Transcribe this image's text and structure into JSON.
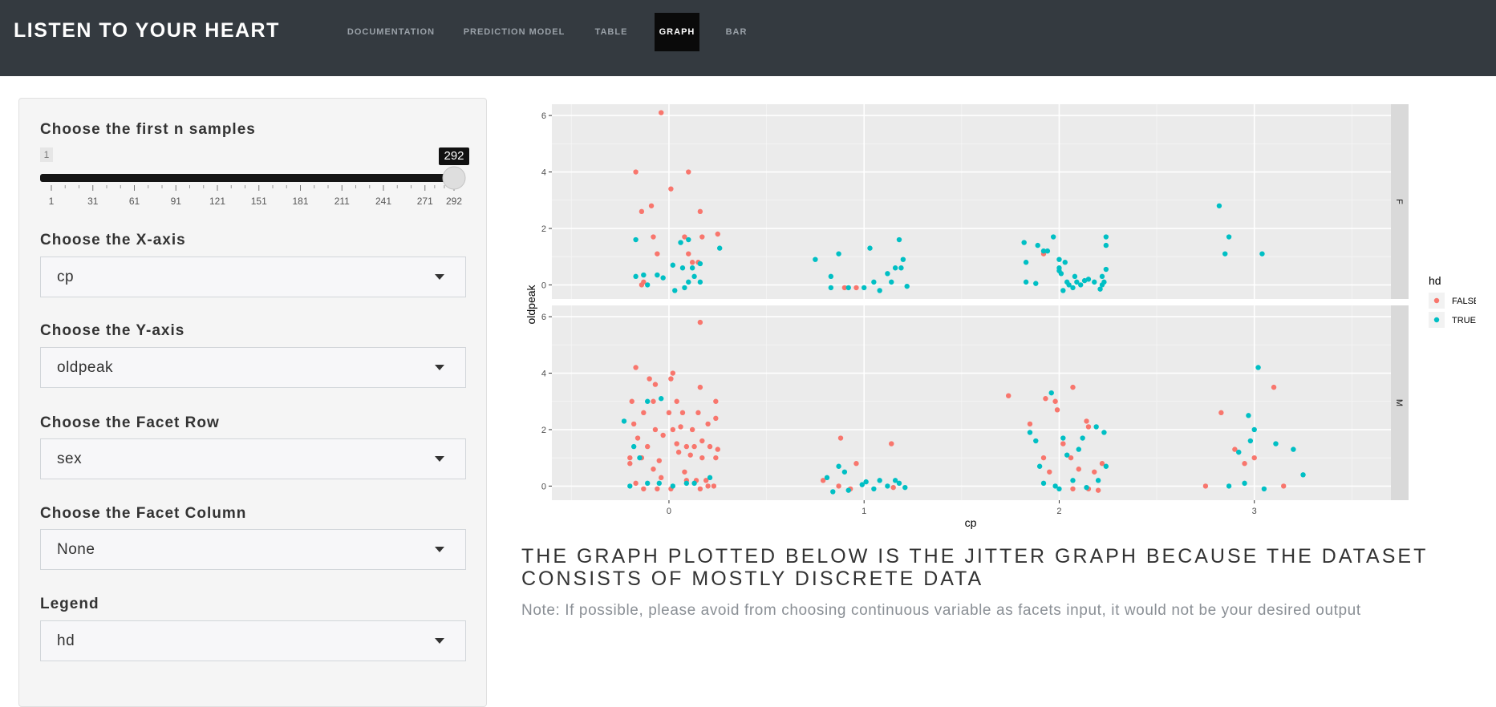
{
  "header": {
    "brand": "LISTEN TO YOUR HEART",
    "tabs": [
      {
        "label": "DOCUMENTATION"
      },
      {
        "label": "PREDICTION MODEL"
      },
      {
        "label": "TABLE"
      },
      {
        "label": "GRAPH"
      },
      {
        "label": "BAR"
      }
    ],
    "active_tab": "GRAPH"
  },
  "sidebar": {
    "slider": {
      "label": "Choose the first n samples",
      "min": 1,
      "max": 292,
      "value": 292,
      "min_label": "1",
      "value_label": "292",
      "ticks": [
        "1",
        "31",
        "61",
        "91",
        "121",
        "151",
        "181",
        "211",
        "241",
        "271",
        "292"
      ]
    },
    "x_axis": {
      "label": "Choose the X-axis",
      "value": "cp"
    },
    "y_axis": {
      "label": "Choose the Y-axis",
      "value": "oldpeak"
    },
    "facet_row": {
      "label": "Choose the Facet Row",
      "value": "sex"
    },
    "facet_col": {
      "label": "Choose the Facet Column",
      "value": "None"
    },
    "legend": {
      "label": "Legend",
      "value": "hd"
    }
  },
  "main": {
    "title": "THE GRAPH PLOTTED BELOW IS THE JITTER GRAPH BECAUSE THE DATASET CONSISTS OF MOSTLY DISCRETE DATA",
    "note": "Note: If possible, please avoid from choosing continuous variable as facets input, it would not be your desired output"
  },
  "colors": {
    "false": "#f8766d",
    "true": "#00bfc4",
    "panel_bg": "#ebebeb",
    "strip_bg": "#d9d9d9",
    "navbar_bg": "#343a40"
  },
  "chart_data": {
    "type": "scatter",
    "jitter": true,
    "xlabel": "cp",
    "ylabel": "oldpeak",
    "x_ticks": [
      "0",
      "1",
      "2",
      "3"
    ],
    "y_ticks": [
      "0",
      "2",
      "4",
      "6"
    ],
    "xlim": [
      -0.6,
      3.7
    ],
    "ylim": [
      -0.5,
      6.4
    ],
    "grid": true,
    "legend_title": "hd",
    "legend_entries": [
      "FALSE",
      "TRUE"
    ],
    "legend_position": "right",
    "facets": [
      {
        "label": "F",
        "series": [
          {
            "name": "FALSE",
            "points": [
              [
                -0.04,
                6.1
              ],
              [
                -0.17,
                4.0
              ],
              [
                0.1,
                4.0
              ],
              [
                0.01,
                3.4
              ],
              [
                -0.09,
                2.8
              ],
              [
                -0.14,
                2.6
              ],
              [
                0.16,
                2.6
              ],
              [
                -0.08,
                1.7
              ],
              [
                0.08,
                1.7
              ],
              [
                0.17,
                1.7
              ],
              [
                0.25,
                1.8
              ],
              [
                -0.06,
                1.1
              ],
              [
                0.1,
                1.1
              ],
              [
                0.12,
                0.8
              ],
              [
                0.15,
                0.8
              ],
              [
                -0.13,
                0.1
              ],
              [
                -0.14,
                0.0
              ],
              [
                0.9,
                -0.1
              ],
              [
                0.96,
                -0.1
              ],
              [
                1.92,
                1.1
              ]
            ]
          },
          {
            "name": "TRUE",
            "points": [
              [
                -0.17,
                1.6
              ],
              [
                -0.17,
                0.3
              ],
              [
                -0.13,
                0.35
              ],
              [
                -0.06,
                0.35
              ],
              [
                -0.03,
                0.25
              ],
              [
                -0.11,
                0.0
              ],
              [
                0.02,
                0.7
              ],
              [
                0.06,
                1.5
              ],
              [
                0.1,
                1.6
              ],
              [
                0.07,
                0.6
              ],
              [
                0.12,
                0.6
              ],
              [
                0.16,
                0.75
              ],
              [
                0.03,
                -0.2
              ],
              [
                0.08,
                -0.1
              ],
              [
                0.1,
                0.1
              ],
              [
                0.16,
                0.1
              ],
              [
                0.26,
                1.3
              ],
              [
                0.13,
                0.3
              ],
              [
                0.75,
                0.9
              ],
              [
                0.83,
                0.3
              ],
              [
                0.83,
                -0.1
              ],
              [
                0.87,
                1.1
              ],
              [
                0.92,
                -0.1
              ],
              [
                1.0,
                -0.1
              ],
              [
                1.03,
                1.3
              ],
              [
                1.05,
                0.1
              ],
              [
                1.08,
                -0.2
              ],
              [
                1.12,
                0.4
              ],
              [
                1.14,
                0.1
              ],
              [
                1.16,
                0.6
              ],
              [
                1.18,
                1.6
              ],
              [
                1.19,
                0.6
              ],
              [
                1.2,
                0.9
              ],
              [
                1.22,
                -0.05
              ],
              [
                1.82,
                1.5
              ],
              [
                1.83,
                0.8
              ],
              [
                1.83,
                0.1
              ],
              [
                1.88,
                0.05
              ],
              [
                1.89,
                1.4
              ],
              [
                1.92,
                1.2
              ],
              [
                1.94,
                1.2
              ],
              [
                1.97,
                1.7
              ],
              [
                2.0,
                0.9
              ],
              [
                2.0,
                0.6
              ],
              [
                2.0,
                0.5
              ],
              [
                2.01,
                0.4
              ],
              [
                2.02,
                -0.2
              ],
              [
                2.03,
                0.8
              ],
              [
                2.04,
                0.1
              ],
              [
                2.05,
                0.0
              ],
              [
                2.07,
                -0.1
              ],
              [
                2.08,
                0.3
              ],
              [
                2.09,
                0.1
              ],
              [
                2.11,
                0.0
              ],
              [
                2.13,
                0.15
              ],
              [
                2.15,
                0.2
              ],
              [
                2.18,
                0.1
              ],
              [
                2.21,
                -0.15
              ],
              [
                2.22,
                0.0
              ],
              [
                2.22,
                0.3
              ],
              [
                2.23,
                0.1
              ],
              [
                2.24,
                1.7
              ],
              [
                2.24,
                1.4
              ],
              [
                2.24,
                0.55
              ],
              [
                2.82,
                2.8
              ],
              [
                2.85,
                1.1
              ],
              [
                2.87,
                1.7
              ],
              [
                3.04,
                1.1
              ]
            ]
          }
        ]
      },
      {
        "label": "M",
        "series": [
          {
            "name": "FALSE",
            "points": [
              [
                0.16,
                5.8
              ],
              [
                -0.17,
                4.2
              ],
              [
                -0.1,
                3.8
              ],
              [
                -0.07,
                3.6
              ],
              [
                0.02,
                4.0
              ],
              [
                0.01,
                3.8
              ],
              [
                0.16,
                3.5
              ],
              [
                -0.19,
                3.0
              ],
              [
                -0.08,
                3.0
              ],
              [
                0.04,
                3.0
              ],
              [
                -0.13,
                2.6
              ],
              [
                0.0,
                2.6
              ],
              [
                0.07,
                2.6
              ],
              [
                0.15,
                2.6
              ],
              [
                0.24,
                3.0
              ],
              [
                -0.18,
                2.2
              ],
              [
                -0.07,
                2.0
              ],
              [
                0.02,
                2.0
              ],
              [
                0.06,
                2.1
              ],
              [
                0.12,
                2.0
              ],
              [
                0.2,
                2.2
              ],
              [
                0.24,
                2.4
              ],
              [
                -0.16,
                1.7
              ],
              [
                -0.11,
                1.4
              ],
              [
                -0.03,
                1.8
              ],
              [
                0.04,
                1.5
              ],
              [
                0.09,
                1.4
              ],
              [
                0.13,
                1.4
              ],
              [
                0.17,
                1.6
              ],
              [
                0.21,
                1.4
              ],
              [
                0.25,
                1.3
              ],
              [
                -0.2,
                1.0
              ],
              [
                -0.14,
                1.0
              ],
              [
                -0.05,
                0.9
              ],
              [
                0.05,
                1.2
              ],
              [
                0.11,
                1.1
              ],
              [
                0.17,
                1.0
              ],
              [
                0.24,
                1.0
              ],
              [
                -0.2,
                0.8
              ],
              [
                -0.08,
                0.6
              ],
              [
                -0.04,
                0.3
              ],
              [
                0.08,
                0.5
              ],
              [
                0.14,
                0.2
              ],
              [
                0.19,
                0.2
              ],
              [
                0.23,
                0.0
              ],
              [
                -0.17,
                0.1
              ],
              [
                -0.13,
                -0.1
              ],
              [
                -0.06,
                -0.1
              ],
              [
                0.01,
                -0.1
              ],
              [
                0.09,
                0.2
              ],
              [
                0.16,
                -0.1
              ],
              [
                0.2,
                0.0
              ],
              [
                0.88,
                1.7
              ],
              [
                1.14,
                1.5
              ],
              [
                0.79,
                0.2
              ],
              [
                0.87,
                0.0
              ],
              [
                0.93,
                -0.1
              ],
              [
                0.96,
                0.8
              ],
              [
                1.15,
                -0.05
              ],
              [
                1.74,
                3.2
              ],
              [
                1.85,
                2.2
              ],
              [
                1.93,
                3.1
              ],
              [
                1.98,
                3.0
              ],
              [
                1.99,
                2.7
              ],
              [
                2.07,
                3.5
              ],
              [
                2.14,
                2.3
              ],
              [
                2.15,
                2.1
              ],
              [
                2.02,
                1.5
              ],
              [
                1.92,
                1.0
              ],
              [
                1.95,
                0.5
              ],
              [
                2.06,
                1.0
              ],
              [
                2.1,
                0.6
              ],
              [
                2.18,
                0.5
              ],
              [
                2.22,
                0.8
              ],
              [
                2.07,
                -0.1
              ],
              [
                2.15,
                -0.1
              ],
              [
                2.2,
                -0.15
              ],
              [
                2.75,
                0.0
              ],
              [
                2.83,
                2.6
              ],
              [
                2.9,
                1.3
              ],
              [
                2.95,
                0.8
              ],
              [
                3.0,
                1.0
              ],
              [
                3.1,
                3.5
              ],
              [
                3.15,
                0.0
              ]
            ]
          },
          {
            "name": "TRUE",
            "points": [
              [
                -0.23,
                2.3
              ],
              [
                -0.18,
                1.4
              ],
              [
                -0.15,
                1.0
              ],
              [
                -0.11,
                3.0
              ],
              [
                -0.11,
                0.1
              ],
              [
                -0.05,
                0.1
              ],
              [
                -0.04,
                3.1
              ],
              [
                -0.2,
                0.0
              ],
              [
                0.02,
                0.0
              ],
              [
                0.09,
                0.1
              ],
              [
                0.13,
                0.1
              ],
              [
                0.21,
                0.3
              ],
              [
                0.81,
                0.3
              ],
              [
                0.84,
                -0.2
              ],
              [
                0.87,
                0.7
              ],
              [
                0.9,
                0.5
              ],
              [
                0.92,
                -0.15
              ],
              [
                0.99,
                0.05
              ],
              [
                1.01,
                0.15
              ],
              [
                1.05,
                -0.1
              ],
              [
                1.08,
                0.2
              ],
              [
                1.12,
                0.0
              ],
              [
                1.16,
                0.2
              ],
              [
                1.18,
                0.1
              ],
              [
                1.21,
                -0.05
              ],
              [
                1.85,
                1.9
              ],
              [
                1.88,
                1.6
              ],
              [
                1.9,
                0.7
              ],
              [
                1.92,
                0.1
              ],
              [
                1.96,
                3.3
              ],
              [
                1.98,
                0.0
              ],
              [
                2.0,
                -0.1
              ],
              [
                2.02,
                1.7
              ],
              [
                2.04,
                1.1
              ],
              [
                2.07,
                0.2
              ],
              [
                2.1,
                1.3
              ],
              [
                2.12,
                1.7
              ],
              [
                2.14,
                -0.05
              ],
              [
                2.19,
                2.1
              ],
              [
                2.2,
                0.2
              ],
              [
                2.23,
                1.9
              ],
              [
                2.24,
                0.7
              ],
              [
                2.87,
                0.0
              ],
              [
                2.92,
                1.2
              ],
              [
                2.95,
                0.1
              ],
              [
                2.97,
                2.5
              ],
              [
                2.98,
                1.6
              ],
              [
                3.0,
                2.0
              ],
              [
                3.02,
                4.2
              ],
              [
                3.05,
                -0.1
              ],
              [
                3.11,
                1.5
              ],
              [
                3.2,
                1.3
              ],
              [
                3.25,
                0.4
              ]
            ]
          }
        ]
      }
    ]
  }
}
